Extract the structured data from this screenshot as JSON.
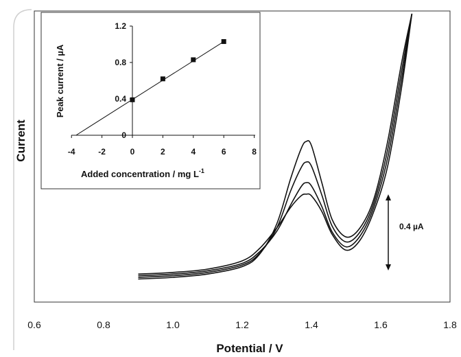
{
  "chart_data": [
    {
      "type": "line",
      "xlabel": "Potential / V",
      "ylabel": "Current",
      "xlim": [
        0.6,
        1.8
      ],
      "x_ticks": [
        "0.6",
        "0.8",
        "1.0",
        "1.2",
        "1.4",
        "1.6",
        "1.8"
      ],
      "y_ticks_shown": false,
      "grid": false,
      "scale_bar": {
        "label": "0.4 µA",
        "value": 0.4
      },
      "series": [
        {
          "x": [
            0.9,
            1.0,
            1.1,
            1.2,
            1.25,
            1.3,
            1.34,
            1.37,
            1.385,
            1.4,
            1.43,
            1.46,
            1.5,
            1.54,
            1.58,
            1.62,
            1.66,
            1.69
          ],
          "y": [
            0.04,
            0.06,
            0.1,
            0.2,
            0.35,
            0.6,
            0.85,
            0.99,
            1.01,
            0.99,
            0.8,
            0.52,
            0.33,
            0.45,
            0.8,
            1.35,
            2.3,
            3.2
          ]
        },
        {
          "x": [
            0.9,
            1.0,
            1.1,
            1.2,
            1.25,
            1.3,
            1.34,
            1.37,
            1.385,
            1.4,
            1.43,
            1.46,
            1.5,
            1.54,
            1.58,
            1.62,
            1.66,
            1.69
          ],
          "y": [
            0.02,
            0.04,
            0.08,
            0.17,
            0.31,
            0.56,
            0.88,
            1.1,
            1.15,
            1.11,
            0.86,
            0.55,
            0.37,
            0.5,
            0.85,
            1.45,
            2.4,
            3.2
          ]
        },
        {
          "x": [
            0.9,
            1.0,
            1.1,
            1.2,
            1.25,
            1.3,
            1.34,
            1.37,
            1.385,
            1.4,
            1.43,
            1.46,
            1.5,
            1.54,
            1.58,
            1.62,
            1.66,
            1.69
          ],
          "y": [
            0.0,
            0.02,
            0.06,
            0.15,
            0.29,
            0.6,
            1.05,
            1.33,
            1.4,
            1.35,
            1.0,
            0.62,
            0.43,
            0.55,
            0.9,
            1.55,
            2.5,
            3.2
          ]
        },
        {
          "x": [
            0.9,
            1.0,
            1.1,
            1.2,
            1.25,
            1.3,
            1.34,
            1.37,
            1.385,
            1.4,
            1.43,
            1.46,
            1.5,
            1.54,
            1.58,
            1.62,
            1.66,
            1.69
          ],
          "y": [
            -0.02,
            0.0,
            0.04,
            0.13,
            0.28,
            0.65,
            1.2,
            1.56,
            1.65,
            1.6,
            1.15,
            0.7,
            0.49,
            0.6,
            0.95,
            1.65,
            2.6,
            3.2
          ]
        }
      ]
    },
    {
      "type": "scatter",
      "xlabel": "Added concentration / mg L-1",
      "ylabel": "Peak current / µA",
      "xlim": [
        -4,
        8
      ],
      "ylim": [
        0,
        1.2
      ],
      "x_ticks": [
        "-4",
        "-2",
        "0",
        "2",
        "4",
        "6",
        "8"
      ],
      "y_ticks": [
        "0",
        "0.4",
        "0.8",
        "1.2"
      ],
      "points": {
        "x": [
          0,
          2,
          4,
          6
        ],
        "y": [
          0.39,
          0.62,
          0.83,
          1.03
        ]
      },
      "fit_line": {
        "x": [
          -3.7,
          6
        ],
        "y": [
          0.0,
          1.03
        ]
      }
    }
  ]
}
